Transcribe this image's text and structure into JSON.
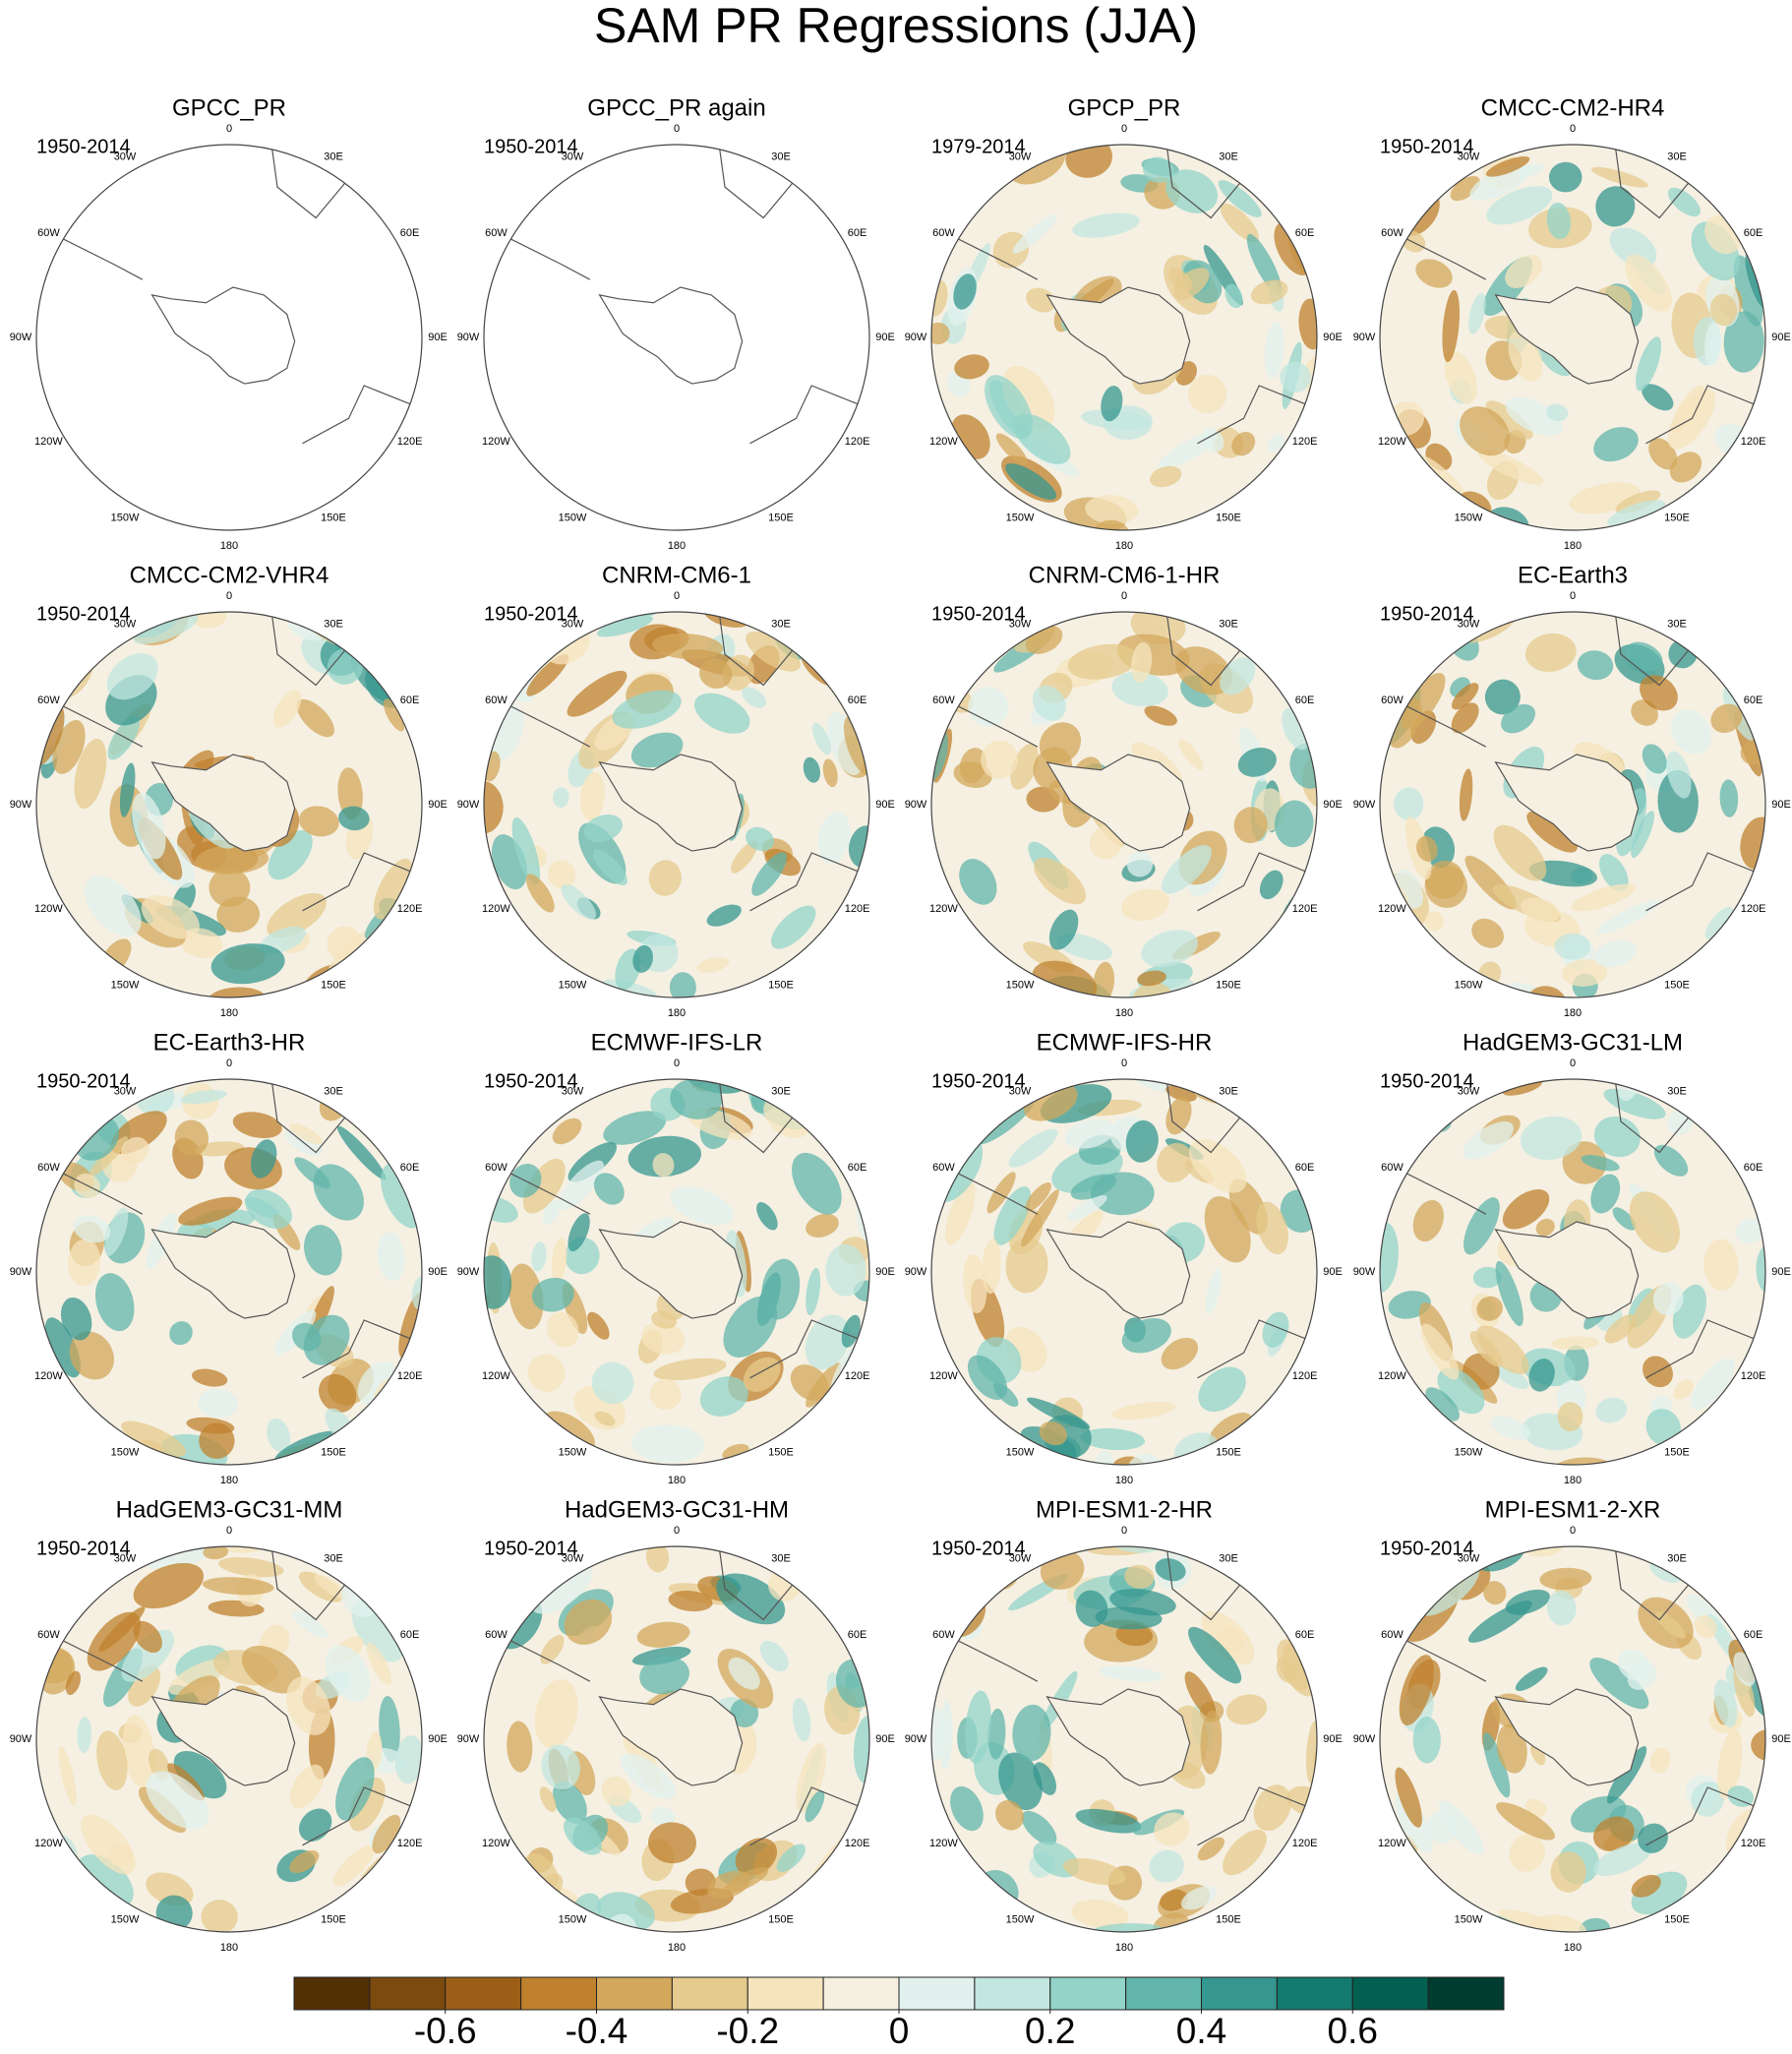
{
  "title": "SAM PR Regressions (JJA)",
  "panels": [
    {
      "title": "GPCC_PR",
      "period": "1950-2014"
    },
    {
      "title": "GPCC_PR again",
      "period": "1950-2014"
    },
    {
      "title": "GPCP_PR",
      "period": "1979-2014"
    },
    {
      "title": "CMCC-CM2-HR4",
      "period": "1950-2014"
    },
    {
      "title": "CMCC-CM2-VHR4",
      "period": "1950-2014"
    },
    {
      "title": "CNRM-CM6-1",
      "period": "1950-2014"
    },
    {
      "title": "CNRM-CM6-1-HR",
      "period": "1950-2014"
    },
    {
      "title": "EC-Earth3",
      "period": "1950-2014"
    },
    {
      "title": "EC-Earth3-HR",
      "period": "1950-2014"
    },
    {
      "title": "ECMWF-IFS-LR",
      "period": "1950-2014"
    },
    {
      "title": "ECMWF-IFS-HR",
      "period": "1950-2014"
    },
    {
      "title": "HadGEM3-GC31-LM",
      "period": "1950-2014"
    },
    {
      "title": "HadGEM3-GC31-MM",
      "period": "1950-2014"
    },
    {
      "title": "HadGEM3-GC31-HM",
      "period": "1950-2014"
    },
    {
      "title": "MPI-ESM1-2-HR",
      "period": "1950-2014"
    },
    {
      "title": "MPI-ESM1-2-XR",
      "period": "1950-2014"
    }
  ],
  "longitude_labels": [
    "0",
    "30E",
    "60E",
    "90E",
    "120E",
    "150E",
    "180",
    "150W",
    "120W",
    "90W",
    "60W",
    "30W"
  ],
  "colorbar": {
    "lim": [
      -0.8,
      0.8
    ],
    "ticks": [
      -0.6,
      -0.4,
      -0.2,
      0,
      0.2,
      0.4,
      0.6
    ],
    "colors": [
      "#543005",
      "#7c4a0d",
      "#9c5e16",
      "#bf812d",
      "#d3a85c",
      "#e6cb8e",
      "#f5e4bd",
      "#f5f0e2",
      "#e2f1ee",
      "#c2e7e0",
      "#93d4c9",
      "#62b6ab",
      "#35978f",
      "#147b70",
      "#01604f",
      "#003c30"
    ]
  }
}
